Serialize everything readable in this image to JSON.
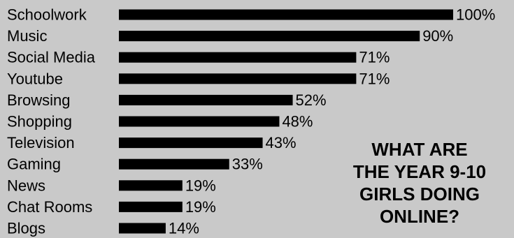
{
  "chart_data": {
    "type": "bar",
    "orientation": "horizontal",
    "title_lines": [
      "WHAT ARE",
      "THE YEAR 9-10",
      "GIRLS DOING",
      "ONLINE?"
    ],
    "categories": [
      "Schoolwork",
      "Music",
      "Social Media",
      "Youtube",
      "Browsing",
      "Shopping",
      "Television",
      "Gaming",
      "News",
      "Chat Rooms",
      "Blogs"
    ],
    "values": [
      100,
      90,
      71,
      71,
      52,
      48,
      43,
      33,
      19,
      19,
      14
    ],
    "value_labels": [
      "100%",
      "90%",
      "71%",
      "71%",
      "52%",
      "48%",
      "43%",
      "33%",
      "19%",
      "19%",
      "14%"
    ],
    "xlim": [
      0,
      100
    ],
    "grid": false,
    "legend": "none",
    "colors": {
      "background": "#c9c9c9",
      "bar": "#000000",
      "text": "#000000"
    }
  }
}
